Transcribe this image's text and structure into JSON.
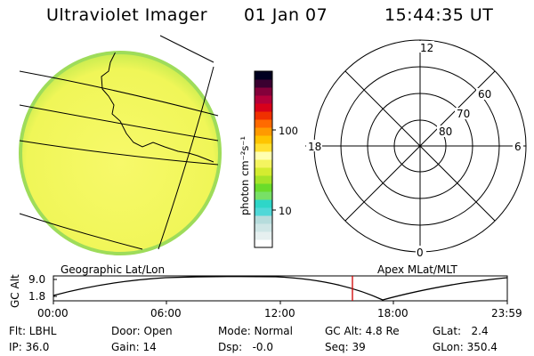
{
  "header": {
    "app_title": "Ultraviolet Imager",
    "date": "01 Jan 07",
    "time": "15:44:35 UT"
  },
  "colorbar": {
    "unit_label": "photon cm⁻²s⁻¹",
    "tick_labels": [
      "100",
      "10"
    ],
    "colors": [
      "#ffffff",
      "#e6f0f0",
      "#cfe6e6",
      "#b6dcdc",
      "#50d8d8",
      "#2ed6c8",
      "#78e066",
      "#6adc2a",
      "#a6e428",
      "#d4ec30",
      "#f4f460",
      "#ffffb0",
      "#ffe030",
      "#ffc400",
      "#ff9a00",
      "#ff6a00",
      "#f03000",
      "#d8001a",
      "#b4003a",
      "#84003a",
      "#3a0030",
      "#000020"
    ]
  },
  "polar_plot": {
    "mlt_labels": [
      "12",
      "18",
      "6",
      "0"
    ],
    "mlat_labels": [
      "60",
      "70",
      "80"
    ]
  },
  "timeline": {
    "left_label": "Geographic Lat/Lon",
    "right_label": "Apex MLat/MLT",
    "y_axis_label": "GC Alt",
    "y_ticks": [
      "9.0",
      "1.8"
    ],
    "x_ticks": [
      "00:00",
      "06:00",
      "12:00",
      "18:00",
      "23:59"
    ],
    "current_time": "15:44:35"
  },
  "status": {
    "flt": "Flt: LBHL",
    "ip": "IP: 36.0",
    "door": "Door: Open",
    "gain": "Gain: 14",
    "mode": "Mode: Normal",
    "dsp": "Dsp:   -0.0",
    "gc_alt": "GC Alt: 4.8 Re",
    "seq": "Seq: 39",
    "glat": "GLat:   2.4",
    "glon": "GLon: 350.4"
  },
  "image_colors": {
    "background": "#f6f85a",
    "rim": "#a0e060",
    "grid_line": "#000000",
    "marker": "#d00000"
  }
}
